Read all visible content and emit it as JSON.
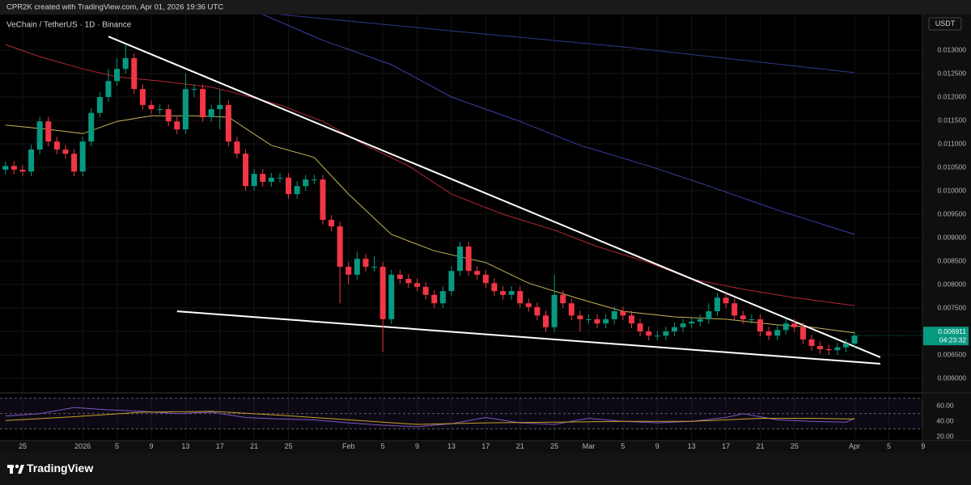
{
  "chart_data": {
    "type": "candlestick",
    "header": "CPR2K created with TradingView.com, Apr 01, 2026 19:36 UTC",
    "title": "VeChain / TetherUS · 1D · Binance",
    "currency": "USDT",
    "countdown": "04:23:32",
    "footer_brand": "TradingView",
    "up_color": "#089981",
    "down_color": "#f23645",
    "grid": true,
    "xlim": [
      -2.64,
      104.92
    ],
    "ylim": [
      0.005707,
      0.013759
    ],
    "xticks": [
      {
        "value": 0,
        "label": "25"
      },
      {
        "value": 7,
        "label": "2026"
      },
      {
        "value": 11,
        "label": "5"
      },
      {
        "value": 15,
        "label": "9"
      },
      {
        "value": 19,
        "label": "13"
      },
      {
        "value": 23,
        "label": "17"
      },
      {
        "value": 27,
        "label": "21"
      },
      {
        "value": 31,
        "label": "25"
      },
      {
        "value": 38,
        "label": "Feb"
      },
      {
        "value": 42,
        "label": "5"
      },
      {
        "value": 46,
        "label": "9"
      },
      {
        "value": 50,
        "label": "13"
      },
      {
        "value": 54,
        "label": "17"
      },
      {
        "value": 58,
        "label": "21"
      },
      {
        "value": 62,
        "label": "25"
      },
      {
        "value": 66,
        "label": "Mar"
      },
      {
        "value": 70,
        "label": "5"
      },
      {
        "value": 74,
        "label": "9"
      },
      {
        "value": 78,
        "label": "13"
      },
      {
        "value": 82,
        "label": "17"
      },
      {
        "value": 86,
        "label": "21"
      },
      {
        "value": 90,
        "label": "25"
      },
      {
        "value": 97,
        "label": "Apr"
      },
      {
        "value": 101,
        "label": "5"
      },
      {
        "value": 105,
        "label": "9"
      }
    ],
    "yticks": [
      {
        "value": 0.013,
        "label": "0.013000"
      },
      {
        "value": 0.0125,
        "label": "0.012500"
      },
      {
        "value": 0.012,
        "label": "0.012000"
      },
      {
        "value": 0.0115,
        "label": "0.011500"
      },
      {
        "value": 0.011,
        "label": "0.011000"
      },
      {
        "value": 0.0105,
        "label": "0.010500"
      },
      {
        "value": 0.01,
        "label": "0.010000"
      },
      {
        "value": 0.0095,
        "label": "0.009500"
      },
      {
        "value": 0.009,
        "label": "0.009000"
      },
      {
        "value": 0.0085,
        "label": "0.008500"
      },
      {
        "value": 0.008,
        "label": "0.008000"
      },
      {
        "value": 0.0075,
        "label": "0.007500"
      },
      {
        "value": 0.007,
        "label": "0.007000"
      },
      {
        "value": 0.0065,
        "label": "0.006500"
      },
      {
        "value": 0.006,
        "label": "0.006000"
      }
    ],
    "x": [
      -2,
      -1,
      0,
      1,
      2,
      3,
      4,
      5,
      6,
      7,
      8,
      9,
      10,
      11,
      12,
      13,
      14,
      15,
      16,
      17,
      18,
      19,
      20,
      21,
      22,
      23,
      24,
      25,
      26,
      27,
      28,
      29,
      30,
      31,
      32,
      33,
      34,
      35,
      36,
      37,
      38,
      39,
      40,
      41,
      42,
      43,
      44,
      45,
      46,
      47,
      48,
      49,
      50,
      51,
      52,
      53,
      54,
      55,
      56,
      57,
      58,
      59,
      60,
      61,
      62,
      63,
      64,
      65,
      66,
      67,
      68,
      69,
      70,
      71,
      72,
      73,
      74,
      75,
      76,
      77,
      78,
      79,
      80,
      81,
      82,
      83,
      84,
      85,
      86,
      87,
      88,
      89,
      90,
      91,
      92,
      93,
      94,
      95,
      96,
      97
    ],
    "open": [
      0.01045,
      0.01053,
      0.01045,
      0.01041,
      0.01088,
      0.01148,
      0.01105,
      0.01088,
      0.01079,
      0.01041,
      0.01105,
      0.01166,
      0.012,
      0.01234,
      0.0126,
      0.01283,
      0.01217,
      0.01183,
      0.01174,
      0.01174,
      0.01148,
      0.01131,
      0.01217,
      0.01217,
      0.01157,
      0.01174,
      0.01183,
      0.01105,
      0.01079,
      0.0101,
      0.01036,
      0.01019,
      0.01028,
      0.01028,
      0.00993,
      0.0101,
      0.01024,
      0.01024,
      0.00938,
      0.00924,
      0.00838,
      0.00821,
      0.00855,
      0.00838,
      0.00838,
      0.00726,
      0.00821,
      0.00812,
      0.00803,
      0.00795,
      0.00778,
      0.0076,
      0.00786,
      0.00829,
      0.00881,
      0.00829,
      0.00821,
      0.00803,
      0.00786,
      0.00778,
      0.00786,
      0.0076,
      0.00752,
      0.00734,
      0.00709,
      0.00778,
      0.0076,
      0.00734,
      0.00726,
      0.00726,
      0.00717,
      0.00726,
      0.00743,
      0.00734,
      0.00717,
      0.007,
      0.00691,
      0.00691,
      0.007,
      0.00709,
      0.00717,
      0.00721,
      0.00726,
      0.00743,
      0.00772,
      0.0076,
      0.00734,
      0.00726,
      0.00726,
      0.007,
      0.00691,
      0.00703,
      0.00717,
      0.00709,
      0.00683,
      0.00669,
      0.00662,
      0.0066,
      0.00666,
      0.00674
    ],
    "high": [
      0.01063,
      0.01063,
      0.01055,
      0.01098,
      0.01158,
      0.01158,
      0.01115,
      0.01098,
      0.01089,
      0.01115,
      0.01176,
      0.0121,
      0.0126,
      0.01283,
      0.01312,
      0.01293,
      0.01227,
      0.01193,
      0.01184,
      0.01184,
      0.01158,
      0.0125,
      0.01227,
      0.01227,
      0.01184,
      0.01217,
      0.01193,
      0.01115,
      0.01089,
      0.01046,
      0.01046,
      0.01038,
      0.01038,
      0.01038,
      0.0102,
      0.01034,
      0.01034,
      0.01034,
      0.00948,
      0.00934,
      0.00848,
      0.0087,
      0.00865,
      0.0086,
      0.00848,
      0.00831,
      0.00831,
      0.00822,
      0.00813,
      0.00805,
      0.00788,
      0.00796,
      0.00839,
      0.00891,
      0.00891,
      0.00839,
      0.00831,
      0.00813,
      0.00796,
      0.00796,
      0.00796,
      0.0077,
      0.00762,
      0.00744,
      0.00821,
      0.00788,
      0.0077,
      0.00744,
      0.00736,
      0.00736,
      0.00736,
      0.00753,
      0.00753,
      0.00744,
      0.00727,
      0.0071,
      0.00701,
      0.0071,
      0.00719,
      0.00727,
      0.00731,
      0.00736,
      0.0076,
      0.00782,
      0.00782,
      0.0077,
      0.00744,
      0.00736,
      0.00736,
      0.0071,
      0.00713,
      0.00727,
      0.00727,
      0.00719,
      0.00693,
      0.00679,
      0.00672,
      0.00676,
      0.00684,
      0.007
    ],
    "low": [
      0.01035,
      0.01035,
      0.01031,
      0.01031,
      0.01078,
      0.01095,
      0.01078,
      0.01069,
      0.01031,
      0.01031,
      0.01095,
      0.01156,
      0.0119,
      0.01224,
      0.0125,
      0.01207,
      0.01173,
      0.01164,
      0.01164,
      0.01138,
      0.01121,
      0.01121,
      0.012,
      0.01147,
      0.01147,
      0.01131,
      0.01095,
      0.01069,
      0.01,
      0.01,
      0.01009,
      0.01009,
      0.01018,
      0.00983,
      0.00983,
      0.01,
      0.01014,
      0.00928,
      0.00914,
      0.0076,
      0.008,
      0.00811,
      0.00828,
      0.00828,
      0.00657,
      0.00716,
      0.00802,
      0.00793,
      0.00785,
      0.00768,
      0.0075,
      0.0075,
      0.00776,
      0.00819,
      0.00819,
      0.00811,
      0.00793,
      0.00776,
      0.00768,
      0.00768,
      0.0075,
      0.00742,
      0.00724,
      0.00699,
      0.00699,
      0.0075,
      0.00724,
      0.007,
      0.00716,
      0.00707,
      0.00707,
      0.00716,
      0.00724,
      0.00707,
      0.0069,
      0.00681,
      0.00681,
      0.00681,
      0.0069,
      0.00699,
      0.00707,
      0.00711,
      0.00716,
      0.00733,
      0.0075,
      0.00724,
      0.00716,
      0.00716,
      0.0069,
      0.00681,
      0.00681,
      0.00693,
      0.00699,
      0.00673,
      0.00659,
      0.00652,
      0.0065,
      0.0065,
      0.00656,
      0.00664
    ],
    "close": [
      0.01053,
      0.01045,
      0.01041,
      0.01088,
      0.01148,
      0.01105,
      0.01088,
      0.01079,
      0.01041,
      0.01105,
      0.01166,
      0.012,
      0.01234,
      0.0126,
      0.01283,
      0.01217,
      0.01183,
      0.01174,
      0.01174,
      0.01148,
      0.01131,
      0.01217,
      0.01217,
      0.01157,
      0.01174,
      0.01183,
      0.01105,
      0.01079,
      0.0101,
      0.01036,
      0.01019,
      0.01028,
      0.01028,
      0.00993,
      0.0101,
      0.01024,
      0.01024,
      0.00938,
      0.00924,
      0.00838,
      0.00821,
      0.00855,
      0.00838,
      0.00838,
      0.00726,
      0.00821,
      0.00812,
      0.00803,
      0.00795,
      0.00778,
      0.0076,
      0.00786,
      0.00829,
      0.00881,
      0.00829,
      0.00821,
      0.00803,
      0.00786,
      0.00778,
      0.00786,
      0.0076,
      0.00752,
      0.00734,
      0.00709,
      0.00778,
      0.0076,
      0.00734,
      0.00726,
      0.00726,
      0.00717,
      0.00726,
      0.00743,
      0.00734,
      0.00717,
      0.007,
      0.00691,
      0.00691,
      0.007,
      0.00709,
      0.00717,
      0.00721,
      0.00726,
      0.00743,
      0.00772,
      0.0076,
      0.00734,
      0.00726,
      0.00726,
      0.007,
      0.00691,
      0.00703,
      0.00717,
      0.00709,
      0.00683,
      0.00669,
      0.00662,
      0.0066,
      0.00666,
      0.00674,
      0.006911
    ],
    "overlays": [
      {
        "color": "#c9b458",
        "width": 1,
        "x": [
          -2,
          3,
          7,
          11,
          15,
          20,
          24,
          29,
          34,
          38,
          43,
          48,
          54,
          59,
          65,
          70,
          76,
          82,
          88,
          92,
          97
        ],
        "values": [
          0.0114,
          0.01131,
          0.01122,
          0.01148,
          0.0116,
          0.0116,
          0.01157,
          0.01097,
          0.01071,
          0.00993,
          0.00907,
          0.00872,
          0.00847,
          0.00803,
          0.00769,
          0.00743,
          0.00731,
          0.00726,
          0.00714,
          0.00709,
          0.00697
        ]
      },
      {
        "color": "#b22833",
        "width": 1,
        "x": [
          -2,
          2,
          7,
          11,
          16,
          22,
          26,
          30,
          35,
          40,
          45,
          50,
          56,
          62,
          67,
          73,
          78,
          84,
          90,
          97
        ],
        "values": [
          0.01312,
          0.01286,
          0.0126,
          0.01243,
          0.01234,
          0.01221,
          0.01203,
          0.01183,
          0.01148,
          0.01097,
          0.01053,
          0.00993,
          0.0095,
          0.00916,
          0.00881,
          0.00847,
          0.00812,
          0.0079,
          0.00772,
          0.00755
        ]
      },
      {
        "color": "#3a3fa8",
        "width": 1,
        "x": [
          28,
          35,
          43,
          50,
          58,
          65,
          73,
          80,
          88,
          97
        ],
        "values": [
          0.01376,
          0.01321,
          0.01269,
          0.012,
          0.01148,
          0.01097,
          0.01053,
          0.0101,
          0.00959,
          0.00907
        ]
      },
      {
        "color": "#2b3a8a",
        "width": 1,
        "x": [
          30,
          50,
          70,
          97
        ],
        "values": [
          0.01376,
          0.01341,
          0.01307,
          0.01252
        ]
      },
      {
        "color": "#ffffff",
        "width": 2,
        "x": [
          10,
          100
        ],
        "values": [
          0.01329,
          0.00645
        ]
      },
      {
        "color": "#ffffff",
        "width": 2,
        "x": [
          18,
          100
        ],
        "values": [
          0.00743,
          0.00631
        ]
      }
    ],
    "rsi": {
      "ylim": [
        15,
        75
      ],
      "yticks": [
        {
          "value": 60,
          "label": "60.00"
        },
        {
          "value": 40,
          "label": "40.00"
        },
        {
          "value": 20,
          "label": "20.00"
        }
      ],
      "levels": [
        70,
        50,
        30
      ],
      "series": [
        {
          "color": "#7e57c2",
          "x": [
            -2,
            2,
            6,
            10,
            14,
            18,
            22,
            26,
            30,
            34,
            38,
            42,
            46,
            50,
            54,
            58,
            62,
            66,
            70,
            74,
            78,
            82,
            84,
            88,
            92,
            96,
            97
          ],
          "values": [
            47,
            50,
            58,
            55,
            53,
            50,
            52,
            45,
            43,
            42,
            38,
            35,
            33,
            37,
            45,
            38,
            36,
            44,
            40,
            38,
            40,
            45,
            50,
            42,
            40,
            39,
            44
          ]
        },
        {
          "color": "#c9a227",
          "x": [
            -2,
            6,
            14,
            22,
            30,
            38,
            46,
            54,
            62,
            70,
            78,
            86,
            92,
            97
          ],
          "values": [
            41,
            46,
            52,
            53,
            48,
            42,
            36,
            38,
            39,
            40,
            40,
            44,
            44,
            43
          ]
        }
      ]
    }
  }
}
